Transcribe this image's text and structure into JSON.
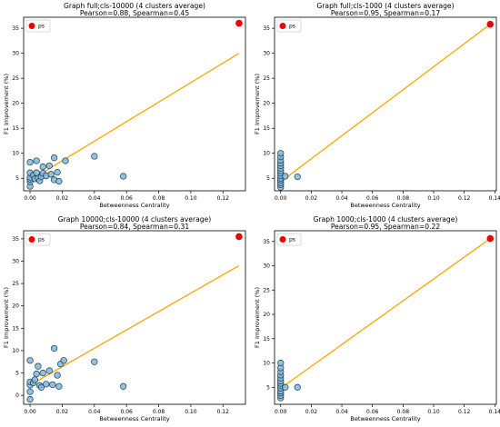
{
  "chart_data": [
    {
      "type": "scatter",
      "title": "Graph full;cls-10000 (4 clusters average)",
      "subtitle": "Pearson=0.88, Spearman=0.45",
      "xlabel": "Betweenness Centrality",
      "ylabel": "F1 Improvement (%)",
      "xlim": [
        -0.004,
        0.134
      ],
      "ylim": [
        2.5,
        37.2
      ],
      "xticks": [
        "0.00",
        "0.02",
        "0.04",
        "0.06",
        "0.08",
        "0.10",
        "0.12"
      ],
      "xtick_values": [
        0,
        0.02,
        0.04,
        0.06,
        0.08,
        0.1,
        0.12
      ],
      "yticks": [
        "5",
        "10",
        "15",
        "20",
        "25",
        "30",
        "35"
      ],
      "ytick_values": [
        5,
        10,
        15,
        20,
        25,
        30,
        35
      ],
      "grid": false,
      "legend_position": "top-left",
      "fit_line": {
        "x": [
          0,
          0.13
        ],
        "y": [
          4.6,
          30.0
        ],
        "color": "#ffa500"
      },
      "series": [
        {
          "name": "",
          "color": "#7fb7d9",
          "points": [
            [
              0.0,
              3.4
            ],
            [
              0.0,
              4.3
            ],
            [
              0.0,
              4.8
            ],
            [
              0.0,
              5.2
            ],
            [
              0.0,
              6.1
            ],
            [
              0.0,
              8.2
            ],
            [
              0.002,
              5.6
            ],
            [
              0.003,
              4.9
            ],
            [
              0.004,
              6.1
            ],
            [
              0.004,
              8.5
            ],
            [
              0.005,
              5.0
            ],
            [
              0.006,
              4.5
            ],
            [
              0.007,
              5.3
            ],
            [
              0.008,
              6.0
            ],
            [
              0.008,
              7.3
            ],
            [
              0.01,
              5.5
            ],
            [
              0.012,
              7.5
            ],
            [
              0.013,
              5.8
            ],
            [
              0.015,
              4.7
            ],
            [
              0.015,
              9.1
            ],
            [
              0.017,
              6.2
            ],
            [
              0.018,
              4.4
            ],
            [
              0.022,
              8.5
            ],
            [
              0.04,
              9.4
            ],
            [
              0.058,
              5.4
            ]
          ]
        },
        {
          "name": "ps",
          "color": "#ee0000",
          "points": [
            [
              0.13,
              36.0
            ]
          ]
        }
      ]
    },
    {
      "type": "scatter",
      "title": "Graph full;cls-1000 (4 clusters average)",
      "subtitle": "Pearson=0.95, Spearman=0.17",
      "xlabel": "Betweenness Centrality",
      "ylabel": "F1 Improvement (%)",
      "xlim": [
        -0.004,
        0.141
      ],
      "ylim": [
        2.5,
        37.2
      ],
      "xticks": [
        "0.00",
        "0.02",
        "0.04",
        "0.06",
        "0.08",
        "0.10",
        "0.12",
        "0.14"
      ],
      "xtick_values": [
        0,
        0.02,
        0.04,
        0.06,
        0.08,
        0.1,
        0.12,
        0.14
      ],
      "yticks": [
        "5",
        "10",
        "15",
        "20",
        "25",
        "30",
        "35"
      ],
      "ytick_values": [
        5,
        10,
        15,
        20,
        25,
        30,
        35
      ],
      "grid": false,
      "legend_position": "top-left",
      "fit_line": {
        "x": [
          0,
          0.137
        ],
        "y": [
          4.3,
          35.8
        ],
        "color": "#ffa500"
      },
      "series": [
        {
          "name": "",
          "color": "#7fb7d9",
          "points": [
            [
              0.0,
              3.2
            ],
            [
              0.0,
              3.7
            ],
            [
              0.0,
              4.1
            ],
            [
              0.0,
              4.6
            ],
            [
              0.0,
              5.0
            ],
            [
              0.0,
              5.5
            ],
            [
              0.0,
              6.0
            ],
            [
              0.0,
              6.5
            ],
            [
              0.0,
              7.0
            ],
            [
              0.0,
              7.5
            ],
            [
              0.0,
              8.0
            ],
            [
              0.0,
              8.6
            ],
            [
              0.0,
              9.3
            ],
            [
              0.0,
              10.0
            ],
            [
              0.003,
              5.4
            ],
            [
              0.011,
              5.3
            ]
          ]
        },
        {
          "name": "ps",
          "color": "#ee0000",
          "points": [
            [
              0.137,
              35.8
            ]
          ]
        }
      ]
    },
    {
      "type": "scatter",
      "title": "Graph 10000;cls-10000 (4 clusters average)",
      "subtitle": "Pearson=0.84, Spearman=0.31",
      "xlabel": "Betweenness Centrality",
      "ylabel": "F1 Improvement (%)",
      "xlim": [
        -0.004,
        0.134
      ],
      "ylim": [
        -2.0,
        36.8
      ],
      "xticks": [
        "0.00",
        "0.02",
        "0.04",
        "0.06",
        "0.08",
        "0.10",
        "0.12"
      ],
      "xtick_values": [
        0,
        0.02,
        0.04,
        0.06,
        0.08,
        0.1,
        0.12
      ],
      "yticks": [
        "0",
        "5",
        "10",
        "15",
        "20",
        "25",
        "30",
        "35"
      ],
      "ytick_values": [
        0,
        5,
        10,
        15,
        20,
        25,
        30,
        35
      ],
      "grid": false,
      "legend_position": "top-left",
      "fit_line": {
        "x": [
          0,
          0.13
        ],
        "y": [
          2.3,
          29.0
        ],
        "color": "#ffa500"
      },
      "series": [
        {
          "name": "",
          "color": "#7fb7d9",
          "points": [
            [
              0.0,
              -0.9
            ],
            [
              0.0,
              0.8
            ],
            [
              0.0,
              2.3
            ],
            [
              0.0,
              3.0
            ],
            [
              0.0,
              7.8
            ],
            [
              0.002,
              2.8
            ],
            [
              0.003,
              3.5
            ],
            [
              0.004,
              4.8
            ],
            [
              0.005,
              6.5
            ],
            [
              0.006,
              2.2
            ],
            [
              0.007,
              1.8
            ],
            [
              0.008,
              5.0
            ],
            [
              0.01,
              2.5
            ],
            [
              0.012,
              5.5
            ],
            [
              0.014,
              2.4
            ],
            [
              0.015,
              10.5
            ],
            [
              0.017,
              4.5
            ],
            [
              0.018,
              2.0
            ],
            [
              0.019,
              7.0
            ],
            [
              0.021,
              7.8
            ],
            [
              0.04,
              7.5
            ],
            [
              0.058,
              2.0
            ]
          ]
        },
        {
          "name": "ps",
          "color": "#ee0000",
          "points": [
            [
              0.13,
              35.5
            ]
          ]
        }
      ]
    },
    {
      "type": "scatter",
      "title": "Graph 1000;cls-1000 (4 clusters average)",
      "subtitle": "Pearson=0.95, Spearman=0.22",
      "xlabel": "Betweenness Centrality",
      "ylabel": "F1 Improvement (%)",
      "xlim": [
        -0.004,
        0.141
      ],
      "ylim": [
        1.5,
        37.2
      ],
      "xticks": [
        "0.00",
        "0.02",
        "0.04",
        "0.06",
        "0.08",
        "0.10",
        "0.12",
        "0.14"
      ],
      "xtick_values": [
        0,
        0.02,
        0.04,
        0.06,
        0.08,
        0.1,
        0.12,
        0.14
      ],
      "yticks": [
        "5",
        "10",
        "15",
        "20",
        "25",
        "30",
        "35"
      ],
      "ytick_values": [
        5,
        10,
        15,
        20,
        25,
        30,
        35
      ],
      "grid": false,
      "legend_position": "top-left",
      "fit_line": {
        "x": [
          0,
          0.137
        ],
        "y": [
          4.8,
          35.6
        ],
        "color": "#ffa500"
      },
      "series": [
        {
          "name": "",
          "color": "#7fb7d9",
          "points": [
            [
              0.0,
              2.8
            ],
            [
              0.0,
              3.3
            ],
            [
              0.0,
              3.8
            ],
            [
              0.0,
              4.2
            ],
            [
              0.0,
              4.8
            ],
            [
              0.0,
              5.3
            ],
            [
              0.0,
              5.8
            ],
            [
              0.0,
              6.3
            ],
            [
              0.0,
              6.9
            ],
            [
              0.0,
              7.5
            ],
            [
              0.0,
              8.2
            ],
            [
              0.0,
              9.0
            ],
            [
              0.0,
              10.0
            ],
            [
              0.003,
              5.0
            ],
            [
              0.011,
              5.0
            ]
          ]
        },
        {
          "name": "ps",
          "color": "#ee0000",
          "points": [
            [
              0.137,
              35.6
            ]
          ]
        }
      ]
    }
  ]
}
